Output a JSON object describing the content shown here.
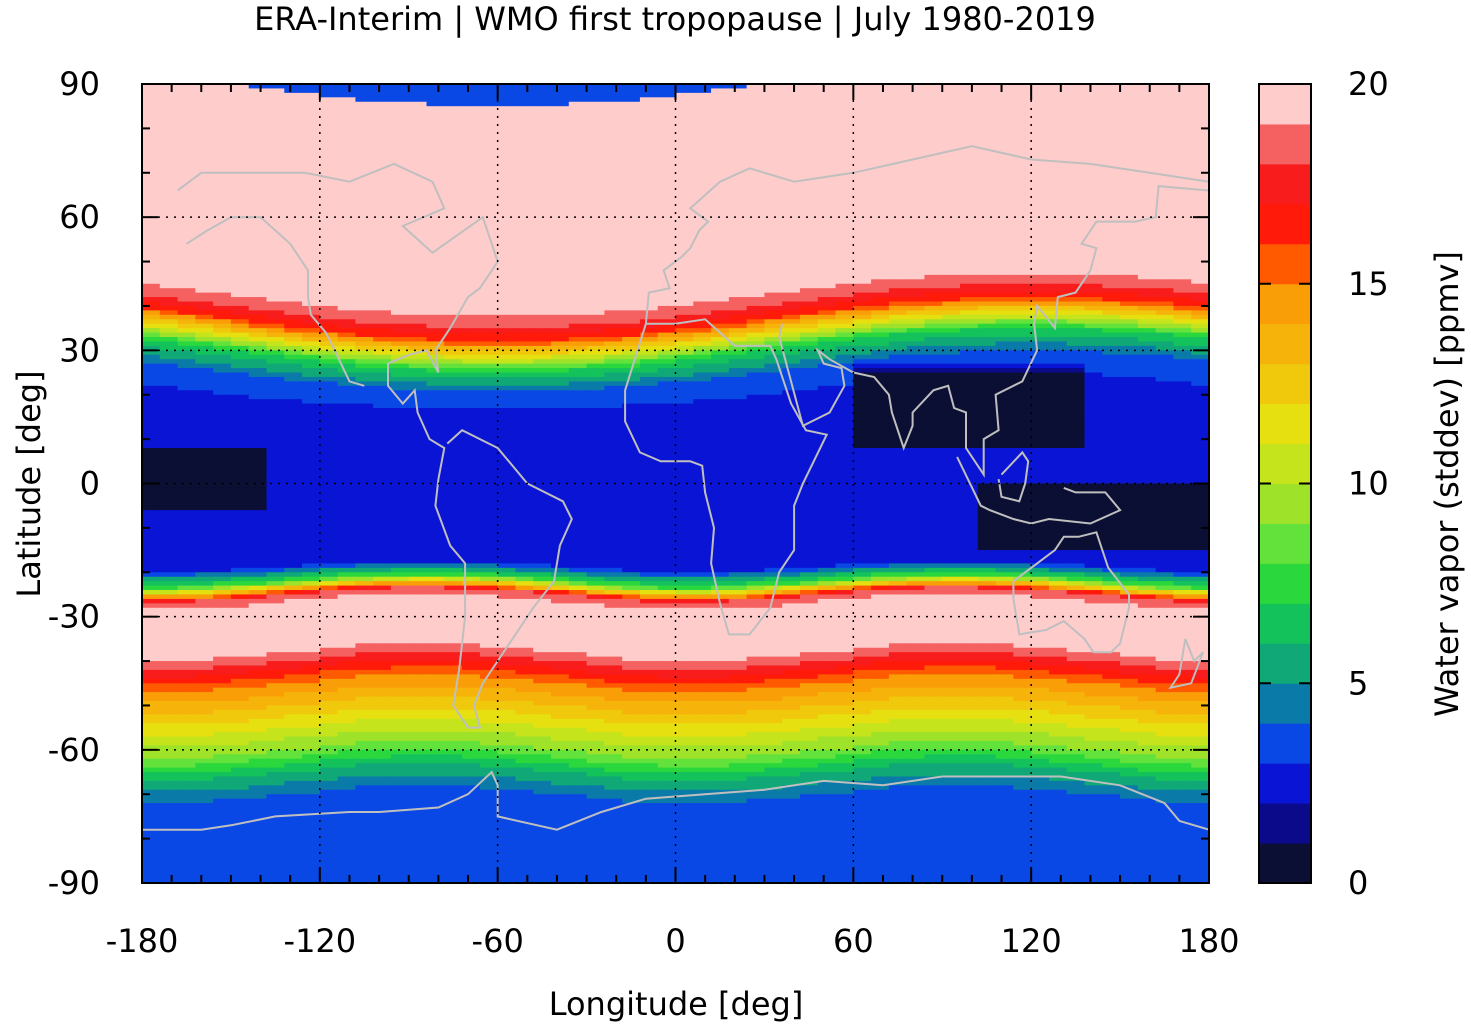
{
  "chart_data": {
    "type": "heatmap",
    "title": "ERA-Interim | WMO first tropopause | July 1980-2019",
    "xlabel": "Longitude [deg]",
    "ylabel": "Latitude [deg]",
    "xlim": [
      -180,
      180
    ],
    "ylim": [
      -90,
      90
    ],
    "xticks": [
      "-180",
      "-120",
      "-60",
      "0",
      "60",
      "120",
      "180"
    ],
    "yticks": [
      "90",
      "60",
      "30",
      "0",
      "-30",
      "-60",
      "-90"
    ],
    "grid": true,
    "colorbar": {
      "label": "Water vapor (stddev) [ppmv]",
      "min": 0,
      "max": 20,
      "step": 1,
      "ticks": [
        "0",
        "5",
        "10",
        "15",
        "20"
      ],
      "colors": [
        "#0b0f33",
        "#0a0a8a",
        "#0a14d4",
        "#0a48e6",
        "#0a7aa8",
        "#10a876",
        "#14c25c",
        "#2ad83e",
        "#62e23a",
        "#9ee22a",
        "#c6e41c",
        "#e6e010",
        "#f0c80c",
        "#f6b40a",
        "#fa9e08",
        "#ff5a00",
        "#ff1a0a",
        "#f81c1c",
        "#f56060",
        "#ffcccc"
      ]
    },
    "zonal_profile_description_free": true,
    "zonal_mean_profile": {
      "lat": [
        90,
        60,
        45,
        40,
        37,
        34,
        30,
        25,
        20,
        15,
        10,
        0,
        -10,
        -18,
        -22,
        -25,
        -28,
        -30,
        -36,
        -40,
        -45,
        -50,
        -55,
        -60,
        -65,
        -70,
        -75,
        -80,
        -90
      ],
      "value": [
        20,
        20,
        20,
        18,
        16,
        12,
        7,
        4,
        3,
        2,
        2,
        2,
        2,
        2,
        8,
        18,
        20,
        20,
        20,
        18,
        15,
        13,
        11,
        9,
        6,
        4,
        3,
        3,
        3
      ]
    }
  }
}
